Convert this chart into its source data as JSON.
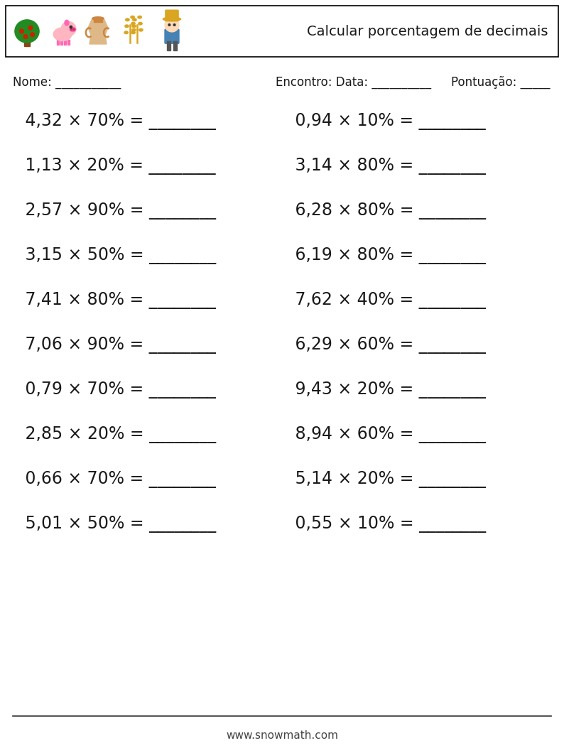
{
  "title": "Calcular porcentagem de decimais",
  "header_label_nome": "Nome: ___________",
  "header_label_encontro": "Encontro: Data: __________",
  "header_label_pontuacao": "Pontuação: _____",
  "left_problems": [
    " 4,32 × 70% = ________",
    " 1,13 × 20% = ________",
    " 2,57 × 90% = ________",
    " 3,15 × 50% = ________",
    " 7,41 × 80% = ________",
    " 7,06 × 90% = ________",
    " 0,79 × 70% = ________",
    " 2,85 × 20% = ________",
    " 0,66 × 70% = ________",
    " 5,01 × 50% = ________"
  ],
  "right_problems": [
    " 0,94 × 10% = ________",
    " 3,14 × 80% = ________",
    " 6,28 × 80% = ________",
    " 6,19 × 80% = ________",
    " 7,62 × 40% = ________",
    " 6,29 × 60% = ________",
    " 9,43 × 20% = ________",
    " 8,94 × 60% = ________",
    " 5,14 × 20% = ________",
    " 0,55 × 10% = ________"
  ],
  "footer_text": "www.snowmath.com",
  "bg_color": "#ffffff",
  "text_color": "#1a1a1a",
  "header_box_color": "#000000",
  "font_size_problems": 17,
  "font_size_header": 12,
  "font_size_title": 14,
  "font_size_footer": 11,
  "icon_colors": {
    "tree_trunk": "#8B4513",
    "tree_leaves": "#228B22",
    "pig_body": "#FFB6C1",
    "pig_dark": "#FF69B4",
    "vase_body": "#DEB887",
    "vase_dark": "#CD853F",
    "wheat_stem": "#DAA520",
    "wheat_grain": "#DAA520",
    "farmer_skin": "#FFDAB9",
    "farmer_hat": "#DAA520",
    "farmer_shirt": "#4682B4"
  }
}
